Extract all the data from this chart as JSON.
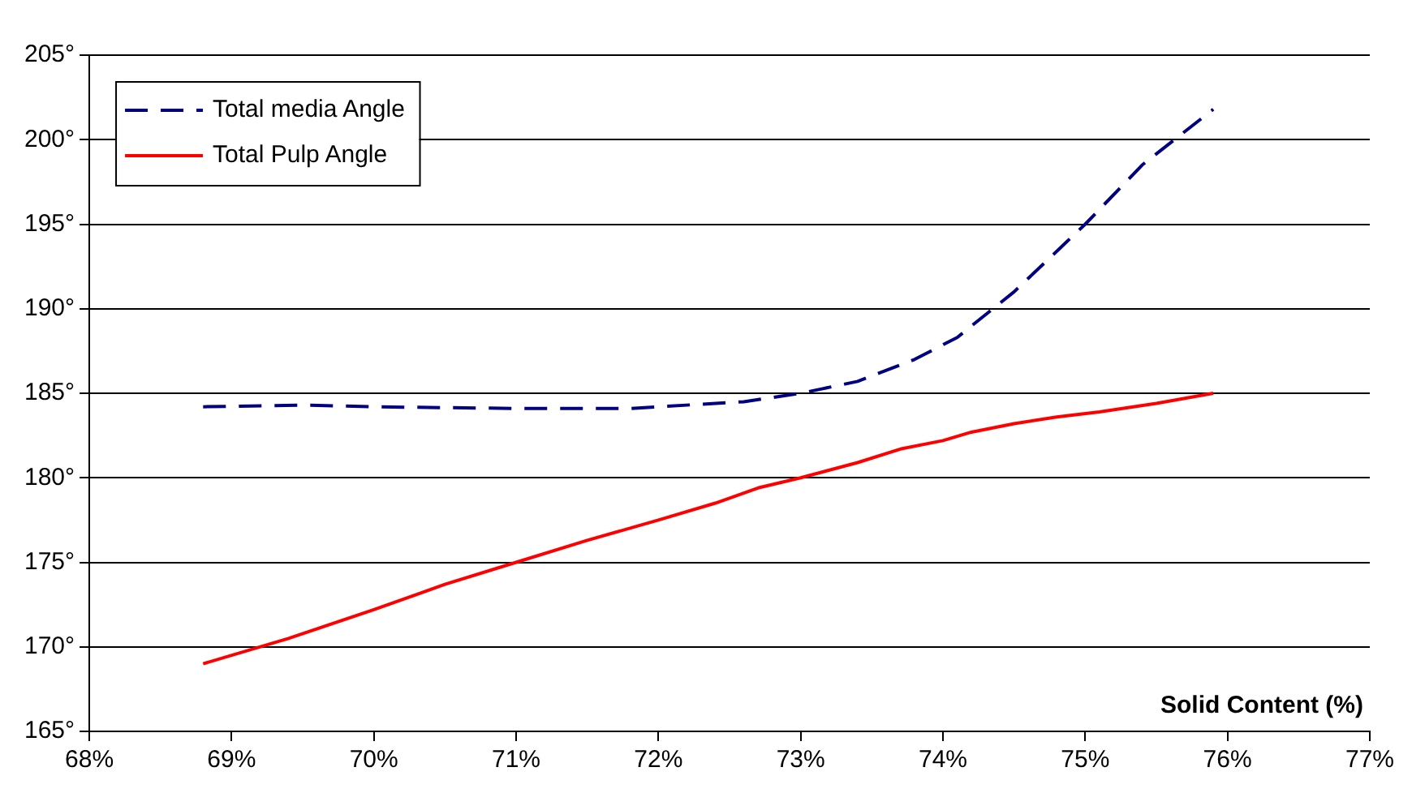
{
  "chart_data": {
    "type": "line",
    "xlabel": "Solid Content (%)",
    "xlim": [
      68,
      77
    ],
    "xticks": [
      {
        "value": 68,
        "label": "68%"
      },
      {
        "value": 69,
        "label": "69%"
      },
      {
        "value": 70,
        "label": "70%"
      },
      {
        "value": 71,
        "label": "71%"
      },
      {
        "value": 72,
        "label": "72%"
      },
      {
        "value": 73,
        "label": "73%"
      },
      {
        "value": 74,
        "label": "74%"
      },
      {
        "value": 75,
        "label": "75%"
      },
      {
        "value": 76,
        "label": "76%"
      },
      {
        "value": 77,
        "label": "77%"
      }
    ],
    "ylim": [
      165,
      205
    ],
    "yticks": [
      {
        "value": 165,
        "label": "165°"
      },
      {
        "value": 170,
        "label": "170°"
      },
      {
        "value": 175,
        "label": "175°"
      },
      {
        "value": 180,
        "label": "180°"
      },
      {
        "value": 185,
        "label": "185°"
      },
      {
        "value": 190,
        "label": "190°"
      },
      {
        "value": 195,
        "label": "195°"
      },
      {
        "value": 200,
        "label": "200°"
      },
      {
        "value": 205,
        "label": "205°"
      }
    ],
    "grid": "y",
    "legend": "top left",
    "marker": "none",
    "series": [
      {
        "name": "Total media Angle",
        "color": "#000080",
        "line_style": "dashed",
        "x": [
          68.8,
          69.5,
          70,
          71,
          71.8,
          72.6,
          73,
          73.4,
          73.8,
          74.1,
          74.5,
          75,
          75.4,
          75.9
        ],
        "values": [
          184.2,
          184.3,
          184.2,
          184.1,
          184.1,
          184.5,
          185,
          185.7,
          187,
          188.3,
          191,
          195,
          198.5,
          201.8
        ]
      },
      {
        "name": "Total Pulp Angle",
        "color": "#ff0000",
        "line_style": "solid",
        "x": [
          68.8,
          69.4,
          70,
          70.5,
          71,
          71.5,
          72,
          72.4,
          72.7,
          73,
          73.4,
          73.7,
          74,
          74.2,
          74.5,
          74.8,
          75.1,
          75.5,
          75.9
        ],
        "values": [
          169,
          170.5,
          172.2,
          173.7,
          175,
          176.3,
          177.5,
          178.5,
          179.4,
          180,
          180.9,
          181.7,
          182.2,
          182.7,
          183.2,
          183.6,
          183.9,
          184.4,
          185
        ]
      }
    ]
  }
}
